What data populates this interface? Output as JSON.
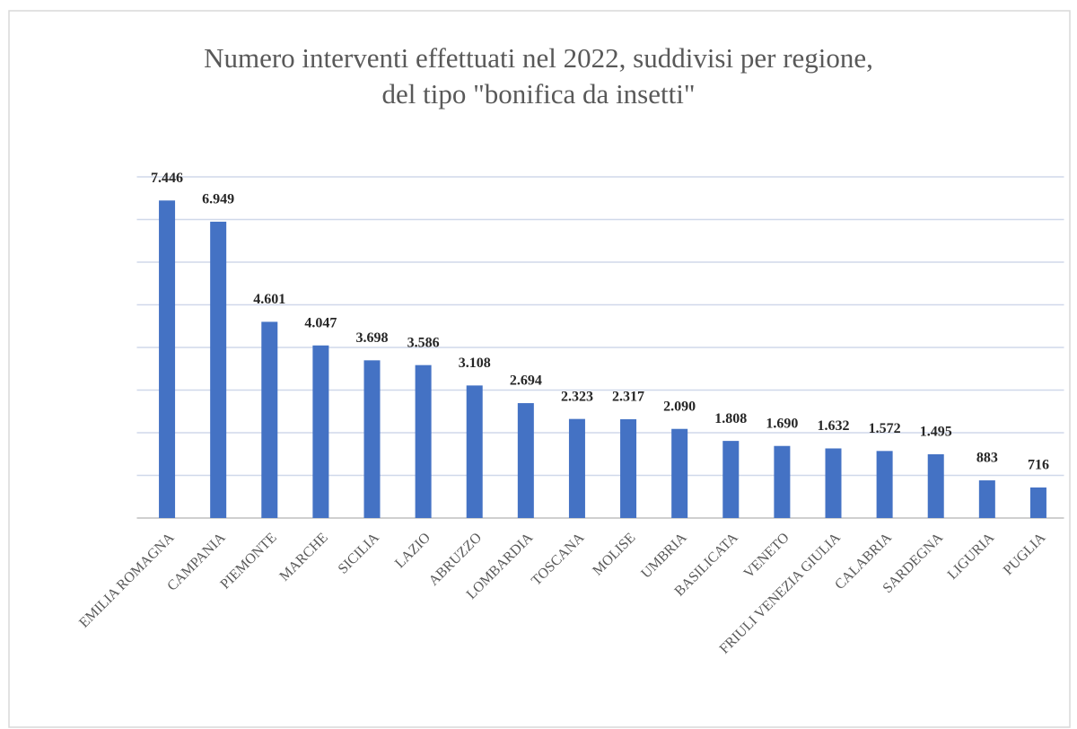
{
  "chart_data": {
    "type": "bar",
    "title": [
      "Numero interventi effettuati nel 2022, suddivisi per regione,",
      "del tipo \"bonifica da insetti\""
    ],
    "categories": [
      "EMILIA ROMAGNA",
      "CAMPANIA",
      "PIEMONTE",
      "MARCHE",
      "SICILIA",
      "LAZIO",
      "ABRUZZO",
      "LOMBARDIA",
      "TOSCANA",
      "MOLISE",
      "UMBRIA",
      "BASILICATA",
      "VENETO",
      "FRIULI VENEZIA GIULIA",
      "CALABRIA",
      "SARDEGNA",
      "LIGURIA",
      "PUGLIA"
    ],
    "values": [
      7446,
      6949,
      4601,
      4047,
      3698,
      3586,
      3108,
      2694,
      2323,
      2317,
      2090,
      1808,
      1690,
      1632,
      1572,
      1495,
      883,
      716
    ],
    "value_labels": [
      "7.446",
      "6.949",
      "4.601",
      "4.047",
      "3.698",
      "3.586",
      "3.108",
      "2.694",
      "2.323",
      "2.317",
      "2.090",
      "1.808",
      "1.690",
      "1.632",
      "1.572",
      "1.495",
      "883",
      "716"
    ],
    "color": "#4472c4",
    "ylim": [
      0,
      8000
    ],
    "yticks": [
      0,
      1000,
      2000,
      3000,
      4000,
      5000,
      6000,
      7000,
      8000
    ],
    "grid": true
  }
}
